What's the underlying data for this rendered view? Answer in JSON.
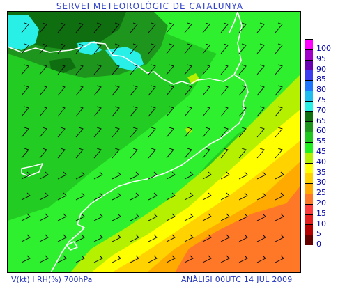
{
  "header": {
    "title": "SERVEI METEOROLÒGIC DE CATALUNYA"
  },
  "footer": {
    "left": "V(kt) I RH(%) 700hPa",
    "right": "ANÀLISI 00UTC 14 JUL 2009"
  },
  "legend": {
    "entries": [
      {
        "label": "100",
        "color": "#ff00ff"
      },
      {
        "label": "95",
        "color": "#a000c8"
      },
      {
        "label": "90",
        "color": "#6a00b4"
      },
      {
        "label": "85",
        "color": "#3c3cf0"
      },
      {
        "label": "80",
        "color": "#1e78ff"
      },
      {
        "label": "75",
        "color": "#1ebef0"
      },
      {
        "label": "70",
        "color": "#28f0e6"
      },
      {
        "label": "65",
        "color": "#0f6e0f"
      },
      {
        "label": "60",
        "color": "#1e961e"
      },
      {
        "label": "55",
        "color": "#1ec81e"
      },
      {
        "label": "45",
        "color": "#1ef01e"
      },
      {
        "label": "40",
        "color": "#b4f000"
      },
      {
        "label": "35",
        "color": "#ffff00"
      },
      {
        "label": "30",
        "color": "#ffd200"
      },
      {
        "label": "25",
        "color": "#ffaa00"
      },
      {
        "label": "20",
        "color": "#ff7828"
      },
      {
        "label": "15",
        "color": "#ff3c3c"
      },
      {
        "label": "10",
        "color": "#e61e1e"
      },
      {
        "label": "5",
        "color": "#b40000"
      },
      {
        "label": "0",
        "color": "#640000"
      }
    ]
  }
}
